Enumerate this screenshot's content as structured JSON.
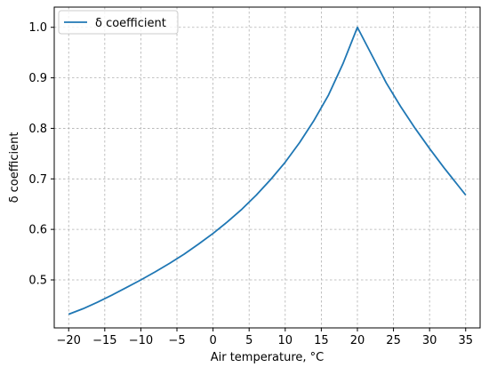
{
  "chart_data": {
    "type": "line",
    "xlabel": "Air temperature, °C",
    "ylabel": "δ coefficient",
    "xlim": [
      -22,
      37
    ],
    "ylim": [
      0.405,
      1.04
    ],
    "xticks": [
      -20,
      -15,
      -10,
      -5,
      0,
      5,
      10,
      15,
      20,
      25,
      30,
      35
    ],
    "xtick_labels": [
      "−20",
      "−15",
      "−10",
      "−5",
      "0",
      "5",
      "10",
      "15",
      "20",
      "25",
      "30",
      "35"
    ],
    "yticks": [
      0.5,
      0.6,
      0.7,
      0.8,
      0.9,
      1.0
    ],
    "ytick_labels": [
      "0.5",
      "0.6",
      "0.7",
      "0.8",
      "0.9",
      "1.0"
    ],
    "grid": true,
    "legend_position": "top-left",
    "series": [
      {
        "name": "δ coefficient",
        "color": "#1f77b4",
        "x": [
          -20,
          -18,
          -16,
          -14,
          -12,
          -10,
          -8,
          -6,
          -4,
          -2,
          0,
          2,
          4,
          6,
          8,
          10,
          12,
          14,
          16,
          18,
          20,
          22,
          24,
          26,
          28,
          30,
          32,
          34,
          35
        ],
        "y": [
          0.432,
          0.443,
          0.456,
          0.47,
          0.485,
          0.5,
          0.516,
          0.533,
          0.551,
          0.571,
          0.592,
          0.615,
          0.64,
          0.668,
          0.699,
          0.733,
          0.772,
          0.816,
          0.866,
          0.928,
          1.0,
          0.945,
          0.89,
          0.843,
          0.8,
          0.76,
          0.722,
          0.686,
          0.668
        ]
      }
    ]
  }
}
